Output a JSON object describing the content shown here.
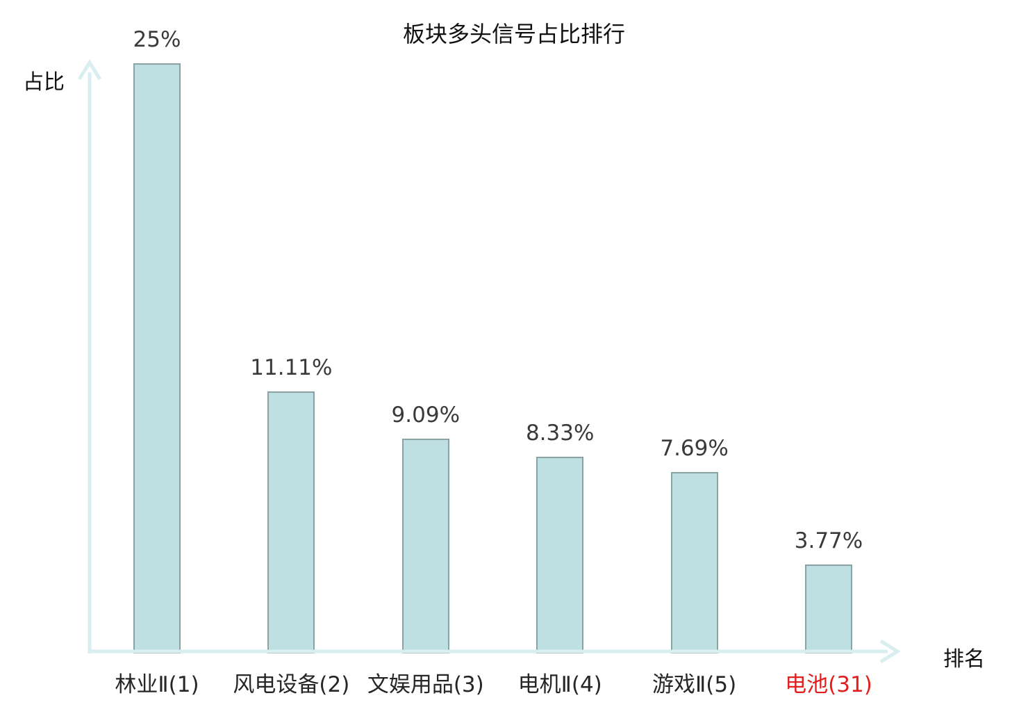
{
  "chart_data": {
    "type": "bar",
    "title": "板块多头信号占比排行",
    "xlabel": "排名",
    "ylabel": "占比",
    "categories": [
      "林业Ⅱ(1)",
      "风电设备(2)",
      "文娱用品(3)",
      "电机Ⅱ(4)",
      "游戏Ⅱ(5)",
      "电池(31)"
    ],
    "values": [
      25,
      11.11,
      9.09,
      8.33,
      7.69,
      3.77
    ],
    "value_labels": [
      "25%",
      "11.11%",
      "9.09%",
      "8.33%",
      "7.69%",
      "3.77%"
    ],
    "category_label_colors": [
      "#262626",
      "#262626",
      "#262626",
      "#262626",
      "#262626",
      "#e01f1f"
    ],
    "highlight_index": 5,
    "ylim": [
      0,
      25.7
    ],
    "grid": false,
    "legend": null,
    "colors": {
      "bar_fill": "#bee0e3",
      "bar_border": "#8ba2a5",
      "axis": "#d9eef0",
      "value_label": "#3a3a3a",
      "highlight_text": "#e01f1f"
    }
  }
}
